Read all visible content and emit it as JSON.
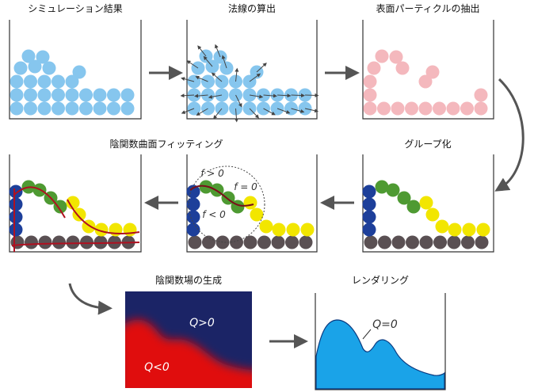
{
  "steps": [
    {
      "label": "シミュレーション結果"
    },
    {
      "label": "法線の算出"
    },
    {
      "label": "表面パーティクルの抽出"
    },
    {
      "label": "陰関数曲面フィッティング"
    },
    {
      "label": "グループ化"
    },
    {
      "label": "陰関数場の生成"
    },
    {
      "label": "レンダリング"
    }
  ],
  "annotations": {
    "f_pos": "f > 0",
    "f_zero": "f = 0",
    "f_neg": "f < 0",
    "q_pos": "Q>0",
    "q_neg": "Q<0",
    "q_zero": "Q=0"
  }
}
